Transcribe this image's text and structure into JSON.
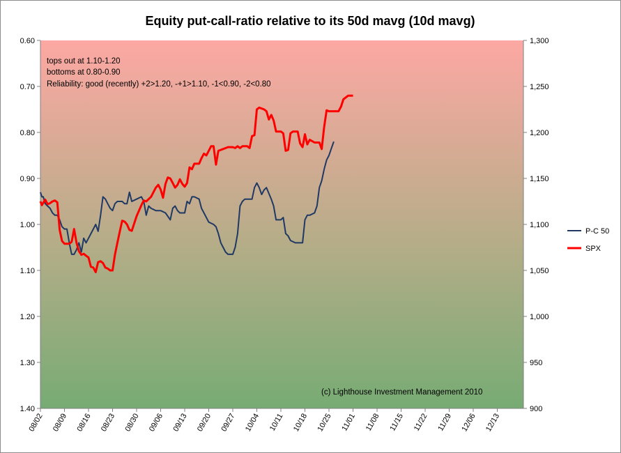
{
  "chart_data": {
    "type": "line",
    "title": "Equity put-call-ratio relative to its 50d mavg (10d mavg)",
    "notes": [
      "tops out at 1.10-1.20",
      "bottoms at 0.80-0.90",
      "Reliability: good (recently) +2>1.20, -+1>1.10, -1<0.90, -2<0.80"
    ],
    "copyright": "(c) Lighthouse Investment Management 2010",
    "x_labels": [
      "08/02",
      "08/09",
      "08/16",
      "08/23",
      "08/30",
      "09/06",
      "09/13",
      "09/20",
      "09/27",
      "10/04",
      "10/11",
      "10/18",
      "10/25",
      "11/01",
      "11/08",
      "11/15",
      "11/22",
      "11/29",
      "12/06",
      "12/13"
    ],
    "y_left": {
      "lim": [
        0.6,
        1.4
      ],
      "inverted": true,
      "ticks": [
        0.6,
        0.7,
        0.8,
        0.9,
        1.0,
        1.1,
        1.2,
        1.3,
        1.4
      ],
      "tick_labels": [
        "0.60",
        "0.70",
        "0.80",
        "0.90",
        "1.00",
        "1.10",
        "1.20",
        "1.30",
        "1.40"
      ]
    },
    "y_right": {
      "lim": [
        900,
        1300
      ],
      "ticks": [
        900,
        950,
        1000,
        1050,
        1100,
        1150,
        1200,
        1250,
        1300
      ],
      "tick_labels": [
        "900",
        "950",
        "1,000",
        "1,050",
        "1,100",
        "1,150",
        "1,200",
        "1,250",
        "1,300"
      ]
    },
    "background_gradient": [
      "#fda8a3",
      "#b5ad88",
      "#77ab74"
    ],
    "grid": false,
    "legend_position": "right",
    "series": [
      {
        "name": "P-C 50",
        "axis": "left",
        "color": "#1f3864",
        "points": [
          [
            0,
            0.93
          ],
          [
            0.3,
            0.94
          ],
          [
            0.6,
            0.94
          ],
          [
            1.0,
            0.955
          ],
          [
            1.5,
            0.96
          ],
          [
            2.0,
            0.965
          ],
          [
            2.5,
            0.975
          ],
          [
            3.0,
            0.98
          ],
          [
            3.5,
            0.98
          ],
          [
            4.0,
            0.99
          ],
          [
            4.5,
            1.005
          ],
          [
            5.0,
            1.01
          ],
          [
            5.5,
            1.01
          ],
          [
            6.0,
            1.04
          ],
          [
            6.5,
            1.065
          ],
          [
            7.0,
            1.065
          ],
          [
            7.5,
            1.055
          ],
          [
            8.0,
            1.04
          ],
          [
            8.5,
            1.06
          ],
          [
            9.0,
            1.03
          ],
          [
            9.5,
            1.04
          ],
          [
            10.0,
            1.03
          ],
          [
            11.0,
            1.01
          ],
          [
            11.5,
            1.0
          ],
          [
            12.0,
            1.015
          ],
          [
            12.5,
            0.98
          ],
          [
            13.0,
            0.94
          ],
          [
            13.5,
            0.945
          ],
          [
            14.0,
            0.955
          ],
          [
            14.5,
            0.965
          ],
          [
            15.0,
            0.97
          ],
          [
            15.5,
            0.955
          ],
          [
            16.0,
            0.95
          ],
          [
            17.0,
            0.95
          ],
          [
            17.5,
            0.955
          ],
          [
            18.0,
            0.955
          ],
          [
            18.5,
            0.93
          ],
          [
            19.0,
            0.95
          ],
          [
            20.0,
            0.945
          ],
          [
            21.0,
            0.94
          ],
          [
            21.5,
            0.95
          ],
          [
            22.0,
            0.98
          ],
          [
            22.5,
            0.96
          ],
          [
            23.0,
            0.965
          ],
          [
            24.0,
            0.97
          ],
          [
            25.0,
            0.97
          ],
          [
            26.0,
            0.975
          ],
          [
            27.0,
            0.99
          ],
          [
            27.5,
            0.965
          ],
          [
            28.0,
            0.96
          ],
          [
            28.5,
            0.97
          ],
          [
            29.0,
            0.975
          ],
          [
            30.0,
            0.975
          ],
          [
            30.5,
            0.95
          ],
          [
            31.0,
            0.955
          ],
          [
            31.5,
            0.94
          ],
          [
            32.0,
            0.94
          ],
          [
            33.0,
            0.945
          ],
          [
            33.5,
            0.965
          ],
          [
            34.0,
            0.975
          ],
          [
            35.0,
            0.995
          ],
          [
            36.0,
            1.0
          ],
          [
            36.5,
            1.005
          ],
          [
            37.0,
            1.02
          ],
          [
            37.5,
            1.04
          ],
          [
            38.0,
            1.05
          ],
          [
            38.5,
            1.06
          ],
          [
            39.0,
            1.065
          ],
          [
            40.0,
            1.065
          ],
          [
            40.5,
            1.05
          ],
          [
            41.0,
            1.02
          ],
          [
            41.5,
            0.96
          ],
          [
            42.0,
            0.95
          ],
          [
            42.5,
            0.945
          ],
          [
            43.0,
            0.945
          ],
          [
            44.0,
            0.945
          ],
          [
            44.5,
            0.92
          ],
          [
            45.0,
            0.91
          ],
          [
            45.5,
            0.92
          ],
          [
            46.0,
            0.935
          ],
          [
            46.5,
            0.925
          ],
          [
            47.0,
            0.92
          ],
          [
            48.0,
            0.945
          ],
          [
            48.5,
            0.96
          ],
          [
            49.0,
            0.99
          ],
          [
            50.0,
            0.99
          ],
          [
            50.5,
            0.985
          ],
          [
            51.0,
            1.02
          ],
          [
            51.5,
            1.025
          ],
          [
            52.0,
            1.035
          ],
          [
            53.0,
            1.04
          ],
          [
            54.0,
            1.04
          ],
          [
            54.5,
            1.04
          ],
          [
            55.0,
            0.99
          ],
          [
            55.5,
            0.98
          ],
          [
            56.0,
            0.98
          ],
          [
            57.0,
            0.975
          ],
          [
            57.5,
            0.96
          ],
          [
            58.0,
            0.92
          ],
          [
            58.5,
            0.905
          ],
          [
            59.0,
            0.88
          ],
          [
            59.5,
            0.86
          ],
          [
            60.0,
            0.85
          ],
          [
            60.5,
            0.835
          ],
          [
            61.0,
            0.82
          ]
        ]
      },
      {
        "name": "SPX",
        "axis": "right",
        "color": "#ff0000",
        "points": [
          [
            0,
            1125
          ],
          [
            0.3,
            1121
          ],
          [
            1.0,
            1127
          ],
          [
            1.5,
            1122
          ],
          [
            2.0,
            1123
          ],
          [
            2.5,
            1125
          ],
          [
            3.0,
            1126
          ],
          [
            3.5,
            1124
          ],
          [
            4.0,
            1094
          ],
          [
            4.5,
            1082
          ],
          [
            5.0,
            1079
          ],
          [
            6.0,
            1079
          ],
          [
            6.5,
            1081
          ],
          [
            7.0,
            1095
          ],
          [
            7.5,
            1080
          ],
          [
            8.0,
            1071
          ],
          [
            8.5,
            1067
          ],
          [
            9.0,
            1068
          ],
          [
            9.5,
            1066
          ],
          [
            10.0,
            1064
          ],
          [
            10.5,
            1054
          ],
          [
            11.0,
            1053
          ],
          [
            11.5,
            1048
          ],
          [
            12.0,
            1059
          ],
          [
            12.5,
            1060
          ],
          [
            13.0,
            1058
          ],
          [
            13.5,
            1053
          ],
          [
            14.0,
            1052
          ],
          [
            14.5,
            1050
          ],
          [
            15.0,
            1050
          ],
          [
            15.5,
            1067
          ],
          [
            16.0,
            1080
          ],
          [
            16.5,
            1092
          ],
          [
            17.0,
            1104
          ],
          [
            17.5,
            1103
          ],
          [
            18.0,
            1100
          ],
          [
            18.5,
            1094
          ],
          [
            19.0,
            1093
          ],
          [
            20.0,
            1109
          ],
          [
            21.0,
            1121
          ],
          [
            21.5,
            1126
          ],
          [
            22.0,
            1125
          ],
          [
            23.0,
            1130
          ],
          [
            24.0,
            1140
          ],
          [
            24.5,
            1143
          ],
          [
            25.0,
            1138
          ],
          [
            25.5,
            1129
          ],
          [
            26.0,
            1144
          ],
          [
            26.5,
            1151
          ],
          [
            27.0,
            1150
          ],
          [
            27.5,
            1145
          ],
          [
            28.0,
            1140
          ],
          [
            28.5,
            1143
          ],
          [
            29.0,
            1149
          ],
          [
            29.5,
            1144
          ],
          [
            30.0,
            1141
          ],
          [
            30.5,
            1145
          ],
          [
            31.0,
            1162
          ],
          [
            31.5,
            1160
          ],
          [
            32.0,
            1166
          ],
          [
            33.0,
            1166
          ],
          [
            33.5,
            1172
          ],
          [
            34.0,
            1177
          ],
          [
            34.5,
            1175
          ],
          [
            35.0,
            1180
          ],
          [
            35.5,
            1185
          ],
          [
            36.0,
            1185
          ],
          [
            36.5,
            1165
          ],
          [
            37.0,
            1180
          ],
          [
            38.0,
            1182
          ],
          [
            39.0,
            1184
          ],
          [
            40.0,
            1184
          ],
          [
            40.5,
            1183
          ],
          [
            41.0,
            1185
          ],
          [
            41.5,
            1183
          ],
          [
            42.0,
            1185
          ],
          [
            43.0,
            1185
          ],
          [
            43.5,
            1183
          ],
          [
            44.0,
            1196
          ],
          [
            44.5,
            1197
          ],
          [
            45.0,
            1225
          ],
          [
            45.5,
            1227
          ],
          [
            46.0,
            1226
          ],
          [
            46.5,
            1225
          ],
          [
            47.0,
            1223
          ],
          [
            47.5,
            1214
          ],
          [
            48.0,
            1219
          ],
          [
            48.5,
            1213
          ],
          [
            49.0,
            1201
          ],
          [
            50.0,
            1201
          ],
          [
            50.5,
            1199
          ],
          [
            51.0,
            1180
          ],
          [
            51.5,
            1181
          ],
          [
            52.0,
            1199
          ],
          [
            52.5,
            1201
          ],
          [
            53.0,
            1201
          ],
          [
            53.5,
            1201
          ],
          [
            54.0,
            1188
          ],
          [
            54.5,
            1184
          ],
          [
            55.0,
            1198
          ],
          [
            55.5,
            1187
          ],
          [
            56.0,
            1192
          ],
          [
            57.0,
            1189
          ],
          [
            58.0,
            1189
          ],
          [
            58.5,
            1182
          ],
          [
            59.0,
            1206
          ],
          [
            59.5,
            1224
          ],
          [
            60.0,
            1223
          ],
          [
            61.0,
            1223
          ],
          [
            62.0,
            1223
          ],
          [
            62.5,
            1228
          ],
          [
            63.0,
            1236
          ],
          [
            64.0,
            1240
          ],
          [
            64.5,
            1240
          ],
          [
            65.0,
            1240
          ]
        ]
      }
    ]
  }
}
